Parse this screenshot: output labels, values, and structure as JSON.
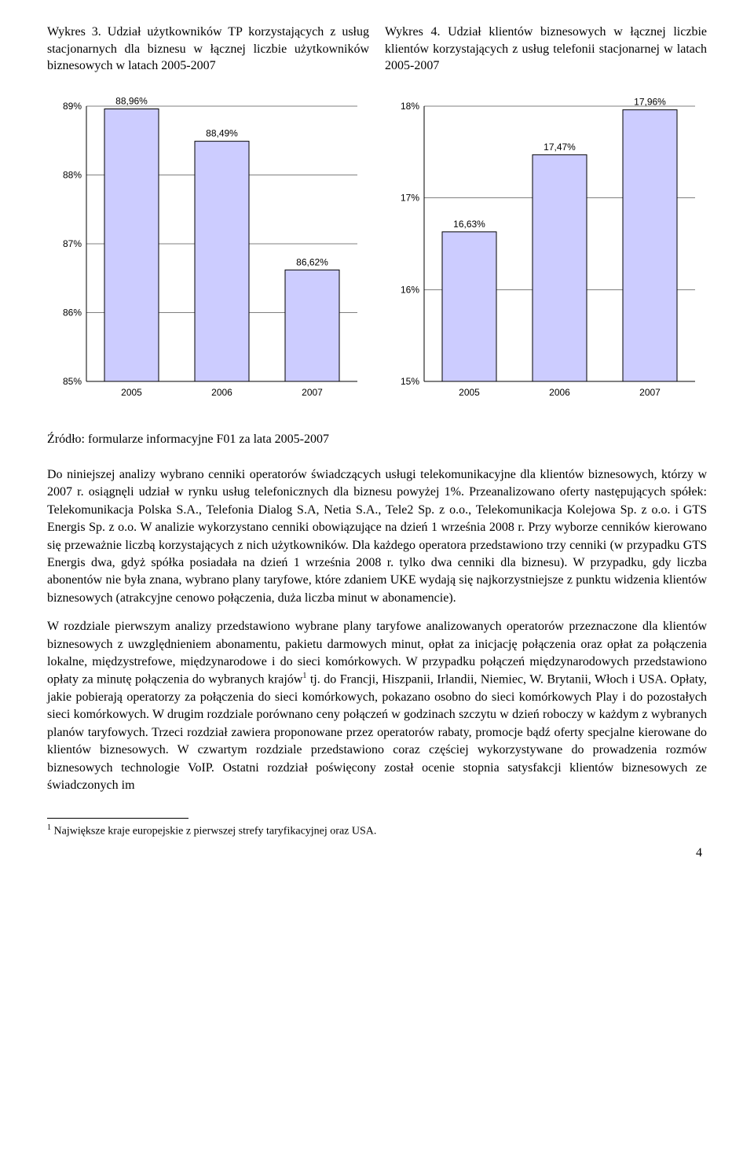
{
  "chart_left": {
    "type": "bar",
    "title": "Wykres 3. Udział użytkowników TP korzystających z usług stacjonarnych dla biznesu w łącznej liczbie użytkowników biznesowych w latach 2005-2007",
    "categories": [
      "2005",
      "2006",
      "2007"
    ],
    "values": [
      88.96,
      88.49,
      86.62
    ],
    "value_labels": [
      "88,96%",
      "88,49%",
      "86,62%"
    ],
    "ylim": [
      85,
      89
    ],
    "ytick_step": 1,
    "ytick_labels": [
      "85%",
      "86%",
      "87%",
      "88%",
      "89%"
    ],
    "bar_color": "#ccccff",
    "bar_border": "#000000",
    "background_color": "#ffffff",
    "grid_color": "#000000",
    "bar_width": 0.6,
    "label_fontsize": 12
  },
  "chart_right": {
    "type": "bar",
    "title": "Wykres 4. Udział klientów biznesowych w łącznej liczbie klientów korzystających z usług telefonii stacjonarnej w latach 2005-2007",
    "categories": [
      "2005",
      "2006",
      "2007"
    ],
    "values": [
      16.63,
      17.47,
      17.96
    ],
    "value_labels": [
      "16,63%",
      "17,47%",
      "17,96%"
    ],
    "ylim": [
      15,
      18
    ],
    "ytick_step": 1,
    "ytick_labels": [
      "15%",
      "16%",
      "17%",
      "18%"
    ],
    "bar_color": "#ccccff",
    "bar_border": "#000000",
    "background_color": "#ffffff",
    "grid_color": "#000000",
    "bar_width": 0.6,
    "label_fontsize": 12
  },
  "source": "Źródło: formularze informacyjne F01 za lata 2005-2007",
  "para1": "Do niniejszej analizy wybrano cenniki operatorów świadczących usługi telekomunikacyjne dla klientów biznesowych, którzy w 2007 r. osiągnęli udział w rynku usług telefonicznych dla biznesu powyżej 1%. Przeanalizowano oferty następujących spółek: Telekomunikacja Polska S.A., Telefonia Dialog S.A, Netia S.A., Tele2 Sp. z o.o., Telekomunikacja Kolejowa Sp. z o.o. i GTS Energis Sp. z o.o. W analizie wykorzystano cenniki obowiązujące na dzień 1 września 2008 r. Przy wyborze cenników kierowano się przeważnie liczbą korzystających z nich użytkowników. Dla każdego operatora przedstawiono trzy cenniki (w przypadku GTS Energis dwa, gdyż spółka posiadała na dzień 1 września 2008 r. tylko dwa cenniki dla biznesu). W przypadku, gdy liczba abonentów nie była znana, wybrano plany taryfowe, które zdaniem UKE wydają się najkorzystniejsze z punktu widzenia klientów biznesowych (atrakcyjne cenowo połączenia, duża liczba minut w abonamencie).",
  "para2": "W rozdziale pierwszym analizy przedstawiono wybrane plany taryfowe analizowanych operatorów przeznaczone dla klientów biznesowych z uwzględnieniem abonamentu, pakietu darmowych minut, opłat za inicjację połączenia oraz opłat za połączenia lokalne, międzystrefowe, międzynarodowe i do sieci komórkowych. W przypadku połączeń międzynarodowych przedstawiono opłaty za minutę połączenia do wybranych krajów",
  "para2_after_sup": " tj. do Francji, Hiszpanii, Irlandii, Niemiec, W. Brytanii, Włoch i USA. Opłaty, jakie pobierają operatorzy za połączenia do sieci komórkowych, pokazano osobno do sieci komórkowych Play i do pozostałych sieci komórkowych. W drugim rozdziale porównano ceny połączeń w godzinach szczytu w dzień roboczy w każdym z wybranych planów taryfowych. Trzeci rozdział zawiera proponowane przez operatorów rabaty, promocje bądź oferty specjalne kierowane do klientów biznesowych. W czwartym rozdziale przedstawiono coraz częściej wykorzystywane do prowadzenia rozmów biznesowych technologie VoIP. Ostatni rozdział poświęcony został ocenie stopnia satysfakcji klientów biznesowych ze świadczonych im",
  "footnote_marker": "1",
  "footnote": "Największe kraje europejskie z pierwszej strefy taryfikacyjnej oraz USA.",
  "page_number": "4"
}
